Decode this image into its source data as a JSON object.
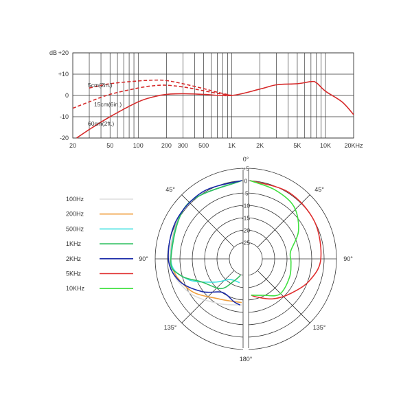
{
  "chart_data": [
    {
      "type": "line",
      "title": "",
      "x_scale": "log",
      "y_unit_label": "dB",
      "xlim": [
        20,
        20000
      ],
      "ylim": [
        -20,
        20
      ],
      "grid": true,
      "x_tick_labels": [
        {
          "value": 20,
          "label": "20"
        },
        {
          "value": 50,
          "label": "50"
        },
        {
          "value": 100,
          "label": "100"
        },
        {
          "value": 200,
          "label": "200"
        },
        {
          "value": 300,
          "label": "300"
        },
        {
          "value": 500,
          "label": "500"
        },
        {
          "value": 1000,
          "label": "1K"
        },
        {
          "value": 2000,
          "label": "2K"
        },
        {
          "value": 5000,
          "label": "5K"
        },
        {
          "value": 10000,
          "label": "10K"
        },
        {
          "value": 20000,
          "label": "20KHz"
        }
      ],
      "y_tick_labels": [
        {
          "value": 20,
          "label": "+20"
        },
        {
          "value": 10,
          "label": "+10"
        },
        {
          "value": 0,
          "label": "0"
        },
        {
          "value": -10,
          "label": "-10"
        },
        {
          "value": -20,
          "label": "-20"
        }
      ],
      "series": [
        {
          "name": "5cm(2in.)",
          "style": "dashed",
          "color": "#d62a2a",
          "points": [
            [
              30,
              3.5
            ],
            [
              50,
              5.5
            ],
            [
              100,
              6.8
            ],
            [
              150,
              7.2
            ],
            [
              200,
              7
            ],
            [
              300,
              5.5
            ],
            [
              500,
              3.2
            ],
            [
              700,
              1.5
            ],
            [
              1000,
              0
            ]
          ]
        },
        {
          "name": "15cm(6in.)",
          "style": "dashed",
          "color": "#d62a2a",
          "points": [
            [
              20,
              -6
            ],
            [
              30,
              -3
            ],
            [
              50,
              0.5
            ],
            [
              100,
              3.5
            ],
            [
              150,
              4.6
            ],
            [
              200,
              4.8
            ],
            [
              300,
              4
            ],
            [
              500,
              2.2
            ],
            [
              700,
              1
            ],
            [
              1000,
              0
            ]
          ]
        },
        {
          "name": "60cm(2ft.)",
          "style": "solid",
          "color": "#d62a2a",
          "points": [
            [
              22,
              -20
            ],
            [
              30,
              -16
            ],
            [
              50,
              -10
            ],
            [
              100,
              -3
            ],
            [
              150,
              -0.5
            ],
            [
              200,
              0.5
            ],
            [
              300,
              0.8
            ],
            [
              500,
              0.5
            ],
            [
              1000,
              0
            ],
            [
              2000,
              3
            ],
            [
              3000,
              5
            ],
            [
              5000,
              5.5
            ],
            [
              7000,
              6.5
            ],
            [
              8000,
              6
            ],
            [
              10000,
              2
            ],
            [
              15000,
              -3
            ],
            [
              20000,
              -9
            ]
          ]
        }
      ]
    },
    {
      "type": "polar",
      "title": "",
      "rlim": [
        -25,
        5
      ],
      "r_tick_labels": [
        "+5",
        "0",
        "-5",
        "-10",
        "-15",
        "-20",
        "-25"
      ],
      "r_tick_values": [
        5,
        0,
        -5,
        -10,
        -15,
        -20,
        -25
      ],
      "angle_labels": [
        {
          "angle": 0,
          "label": "0°"
        },
        {
          "angle": 45,
          "label": "45°"
        },
        {
          "angle": 90,
          "label": "90°"
        },
        {
          "angle": 135,
          "label": "135°"
        },
        {
          "angle": 180,
          "label": "180°"
        },
        {
          "angle": 225,
          "label": "135°"
        },
        {
          "angle": 270,
          "label": "90°"
        },
        {
          "angle": 315,
          "label": "45°"
        }
      ],
      "legend_placement": "left",
      "series": [
        {
          "name": "100Hz",
          "color": "#dddddd",
          "side": "left",
          "points": [
            [
              0,
              0
            ],
            [
              45,
              -0.5
            ],
            [
              90,
              -2.5
            ],
            [
              120,
              -6
            ],
            [
              150,
              -11
            ],
            [
              180,
              -13
            ]
          ]
        },
        {
          "name": "200Hz",
          "color": "#f0a040",
          "side": "left",
          "points": [
            [
              0,
              0
            ],
            [
              45,
              -0.5
            ],
            [
              90,
              -3
            ],
            [
              120,
              -7
            ],
            [
              150,
              -13
            ],
            [
              180,
              -14
            ]
          ]
        },
        {
          "name": "500Hz",
          "color": "#40e0e0",
          "side": "left",
          "points": [
            [
              0,
              0
            ],
            [
              45,
              -0.5
            ],
            [
              90,
              -3
            ],
            [
              110,
              -8
            ],
            [
              130,
              -17
            ],
            [
              150,
              -22
            ],
            [
              175,
              -22
            ]
          ]
        },
        {
          "name": "1KHz",
          "color": "#30c060",
          "side": "left",
          "points": [
            [
              0,
              0
            ],
            [
              45,
              -0.5
            ],
            [
              90,
              -3
            ],
            [
              105,
              -6
            ],
            [
              120,
              -13
            ],
            [
              145,
              -17
            ],
            [
              160,
              -22
            ],
            [
              176,
              -25
            ]
          ]
        },
        {
          "name": "2KHz",
          "color": "#1a2aa8",
          "side": "left",
          "points": [
            [
              0,
              0
            ],
            [
              30,
              -0.3
            ],
            [
              60,
              -1
            ],
            [
              90,
              -2
            ],
            [
              110,
              -5
            ],
            [
              130,
              -11
            ],
            [
              150,
              -16
            ],
            [
              170,
              -14
            ],
            [
              178,
              -13
            ]
          ]
        },
        {
          "name": "5KHz",
          "color": "#e03030",
          "side": "right",
          "points": [
            [
              0,
              0
            ],
            [
              30,
              -0.5
            ],
            [
              60,
              -1.5
            ],
            [
              90,
              -3
            ],
            [
              110,
              -6
            ],
            [
              130,
              -10
            ],
            [
              150,
              -13
            ],
            [
              170,
              -16
            ],
            [
              178,
              -17
            ]
          ]
        },
        {
          "name": "10KHz",
          "color": "#40e040",
          "side": "right",
          "points": [
            [
              0,
              0
            ],
            [
              20,
              -2
            ],
            [
              40,
              -4
            ],
            [
              60,
              -9
            ],
            [
              80,
              -15
            ],
            [
              95,
              -15
            ],
            [
              115,
              -14
            ],
            [
              140,
              -13
            ],
            [
              160,
              -16
            ],
            [
              178,
              -17
            ]
          ]
        }
      ]
    }
  ]
}
